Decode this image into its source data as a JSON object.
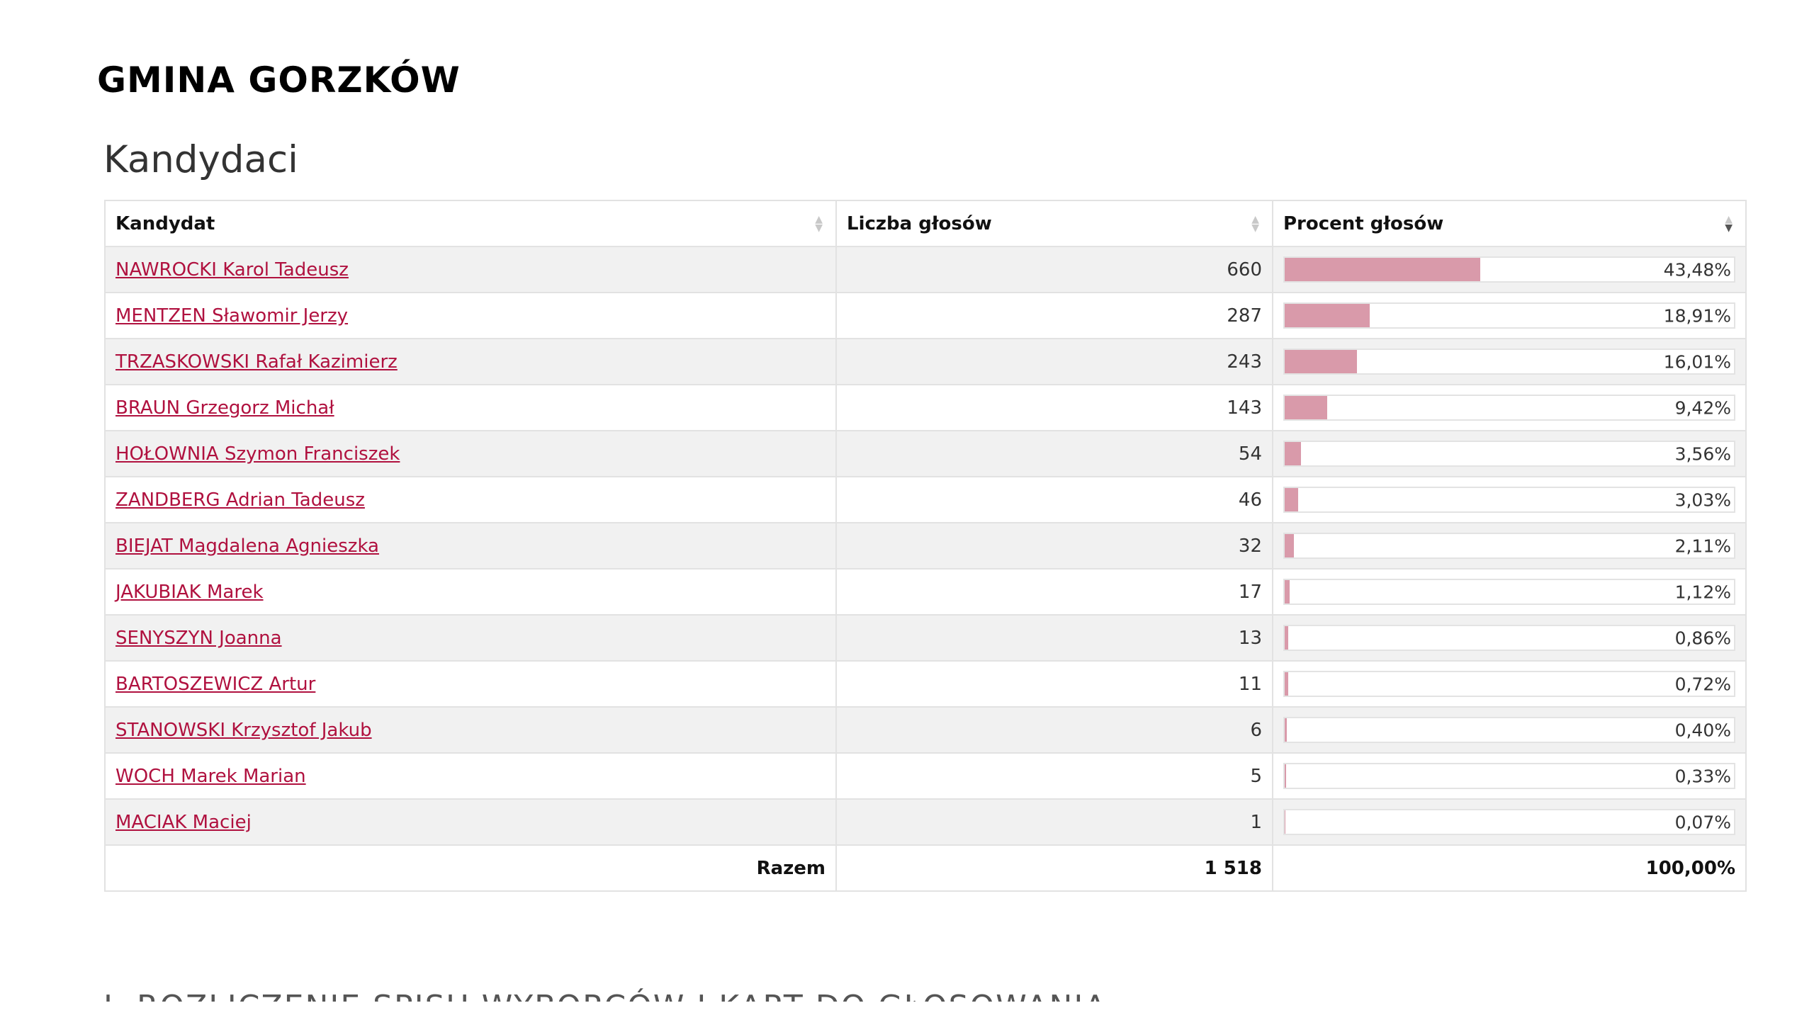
{
  "page_title": "GMINA GORZKÓW",
  "section_title": "Kandydaci",
  "table": {
    "headers": {
      "candidate": "Kandydat",
      "votes": "Liczba głosów",
      "percent": "Procent głosów"
    },
    "rows": [
      {
        "name": "NAWROCKI Karol Tadeusz",
        "votes": "660",
        "percent": "43,48%",
        "share": 43.48
      },
      {
        "name": "MENTZEN Sławomir Jerzy",
        "votes": "287",
        "percent": "18,91%",
        "share": 18.91
      },
      {
        "name": "TRZASKOWSKI Rafał Kazimierz",
        "votes": "243",
        "percent": "16,01%",
        "share": 16.01
      },
      {
        "name": "BRAUN Grzegorz Michał",
        "votes": "143",
        "percent": "9,42%",
        "share": 9.42
      },
      {
        "name": "HOŁOWNIA Szymon Franciszek",
        "votes": "54",
        "percent": "3,56%",
        "share": 3.56
      },
      {
        "name": "ZANDBERG Adrian Tadeusz",
        "votes": "46",
        "percent": "3,03%",
        "share": 3.03
      },
      {
        "name": "BIEJAT Magdalena Agnieszka",
        "votes": "32",
        "percent": "2,11%",
        "share": 2.11
      },
      {
        "name": "JAKUBIAK Marek",
        "votes": "17",
        "percent": "1,12%",
        "share": 1.12
      },
      {
        "name": "SENYSZYN Joanna",
        "votes": "13",
        "percent": "0,86%",
        "share": 0.86
      },
      {
        "name": "BARTOSZEWICZ Artur",
        "votes": "11",
        "percent": "0,72%",
        "share": 0.72
      },
      {
        "name": "STANOWSKI Krzysztof Jakub",
        "votes": "6",
        "percent": "0,40%",
        "share": 0.4
      },
      {
        "name": "WOCH Marek Marian",
        "votes": "5",
        "percent": "0,33%",
        "share": 0.33
      },
      {
        "name": "MACIAK Maciej",
        "votes": "1",
        "percent": "0,07%",
        "share": 0.07
      }
    ],
    "total": {
      "label": "Razem",
      "votes": "1 518",
      "percent": "100,00%"
    }
  },
  "next_section_title": "I. ROZLICZENIE SPISU WYBORCÓW I KART DO GŁOSOWANIA",
  "colors": {
    "link": "#b0113f",
    "bar_fill": "#d99aaa"
  }
}
